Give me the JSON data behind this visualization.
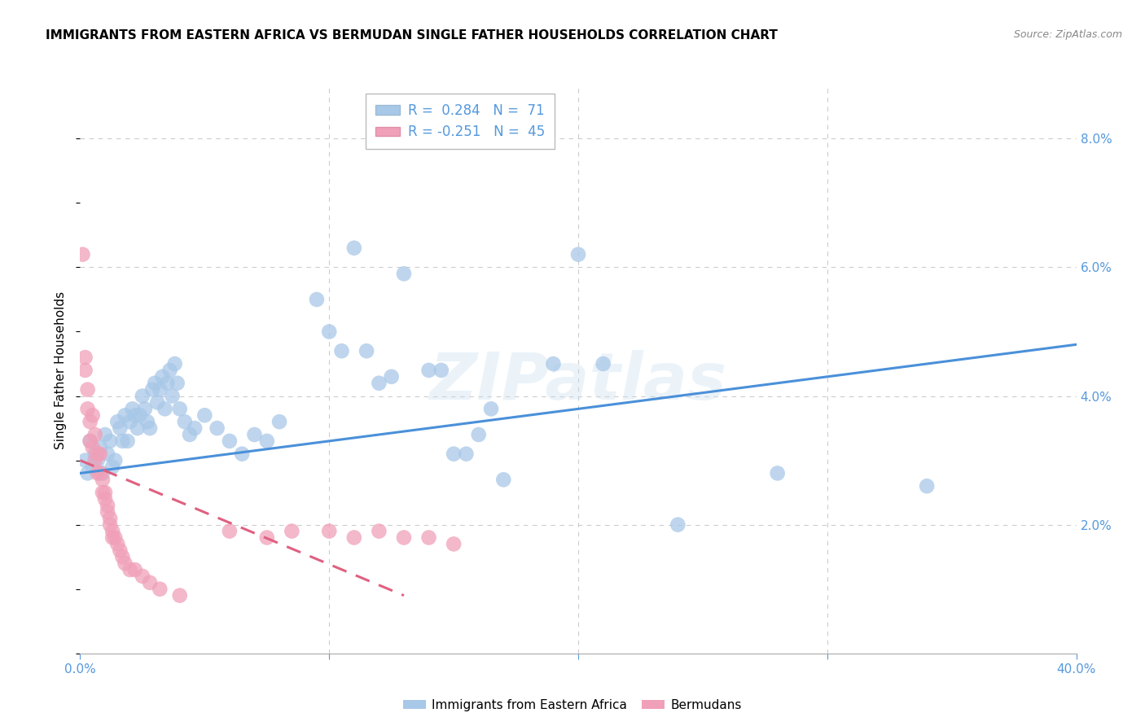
{
  "title": "IMMIGRANTS FROM EASTERN AFRICA VS BERMUDAN SINGLE FATHER HOUSEHOLDS CORRELATION CHART",
  "source": "Source: ZipAtlas.com",
  "ylabel": "Single Father Households",
  "watermark": "ZIPatlas",
  "xlim": [
    0.0,
    0.4
  ],
  "ylim": [
    0.0,
    0.088
  ],
  "yticks": [
    0.0,
    0.02,
    0.04,
    0.06,
    0.08
  ],
  "yticklabels": [
    "",
    "2.0%",
    "4.0%",
    "6.0%",
    "8.0%"
  ],
  "blue_color": "#a8c8e8",
  "pink_color": "#f0a0b8",
  "blue_line_color": "#4a90d9",
  "pink_line_color": "#e06080",
  "tick_color": "#5599dd",
  "grid_color": "#cccccc",
  "blue_scatter": [
    [
      0.002,
      0.03
    ],
    [
      0.003,
      0.028
    ],
    [
      0.004,
      0.033
    ],
    [
      0.005,
      0.029
    ],
    [
      0.006,
      0.031
    ],
    [
      0.007,
      0.03
    ],
    [
      0.008,
      0.032
    ],
    [
      0.009,
      0.028
    ],
    [
      0.01,
      0.034
    ],
    [
      0.011,
      0.031
    ],
    [
      0.012,
      0.033
    ],
    [
      0.013,
      0.029
    ],
    [
      0.014,
      0.03
    ],
    [
      0.015,
      0.036
    ],
    [
      0.016,
      0.035
    ],
    [
      0.017,
      0.033
    ],
    [
      0.018,
      0.037
    ],
    [
      0.019,
      0.033
    ],
    [
      0.02,
      0.036
    ],
    [
      0.021,
      0.038
    ],
    [
      0.022,
      0.037
    ],
    [
      0.023,
      0.035
    ],
    [
      0.024,
      0.037
    ],
    [
      0.025,
      0.04
    ],
    [
      0.026,
      0.038
    ],
    [
      0.027,
      0.036
    ],
    [
      0.028,
      0.035
    ],
    [
      0.029,
      0.041
    ],
    [
      0.03,
      0.042
    ],
    [
      0.031,
      0.039
    ],
    [
      0.032,
      0.041
    ],
    [
      0.033,
      0.043
    ],
    [
      0.034,
      0.038
    ],
    [
      0.035,
      0.042
    ],
    [
      0.036,
      0.044
    ],
    [
      0.037,
      0.04
    ],
    [
      0.038,
      0.045
    ],
    [
      0.039,
      0.042
    ],
    [
      0.04,
      0.038
    ],
    [
      0.042,
      0.036
    ],
    [
      0.044,
      0.034
    ],
    [
      0.046,
      0.035
    ],
    [
      0.05,
      0.037
    ],
    [
      0.055,
      0.035
    ],
    [
      0.06,
      0.033
    ],
    [
      0.065,
      0.031
    ],
    [
      0.07,
      0.034
    ],
    [
      0.075,
      0.033
    ],
    [
      0.08,
      0.036
    ],
    [
      0.095,
      0.055
    ],
    [
      0.1,
      0.05
    ],
    [
      0.105,
      0.047
    ],
    [
      0.11,
      0.063
    ],
    [
      0.115,
      0.047
    ],
    [
      0.12,
      0.042
    ],
    [
      0.125,
      0.043
    ],
    [
      0.13,
      0.059
    ],
    [
      0.14,
      0.044
    ],
    [
      0.145,
      0.044
    ],
    [
      0.15,
      0.031
    ],
    [
      0.155,
      0.031
    ],
    [
      0.16,
      0.034
    ],
    [
      0.165,
      0.038
    ],
    [
      0.17,
      0.027
    ],
    [
      0.19,
      0.045
    ],
    [
      0.2,
      0.062
    ],
    [
      0.21,
      0.045
    ],
    [
      0.24,
      0.02
    ],
    [
      0.28,
      0.028
    ],
    [
      0.34,
      0.026
    ]
  ],
  "pink_scatter": [
    [
      0.001,
      0.062
    ],
    [
      0.002,
      0.046
    ],
    [
      0.002,
      0.044
    ],
    [
      0.003,
      0.041
    ],
    [
      0.003,
      0.038
    ],
    [
      0.004,
      0.036
    ],
    [
      0.004,
      0.033
    ],
    [
      0.005,
      0.037
    ],
    [
      0.005,
      0.032
    ],
    [
      0.006,
      0.034
    ],
    [
      0.006,
      0.03
    ],
    [
      0.007,
      0.031
    ],
    [
      0.007,
      0.028
    ],
    [
      0.008,
      0.031
    ],
    [
      0.008,
      0.028
    ],
    [
      0.009,
      0.027
    ],
    [
      0.009,
      0.025
    ],
    [
      0.01,
      0.025
    ],
    [
      0.01,
      0.024
    ],
    [
      0.011,
      0.023
    ],
    [
      0.011,
      0.022
    ],
    [
      0.012,
      0.021
    ],
    [
      0.012,
      0.02
    ],
    [
      0.013,
      0.019
    ],
    [
      0.013,
      0.018
    ],
    [
      0.014,
      0.018
    ],
    [
      0.015,
      0.017
    ],
    [
      0.016,
      0.016
    ],
    [
      0.017,
      0.015
    ],
    [
      0.018,
      0.014
    ],
    [
      0.02,
      0.013
    ],
    [
      0.022,
      0.013
    ],
    [
      0.025,
      0.012
    ],
    [
      0.028,
      0.011
    ],
    [
      0.032,
      0.01
    ],
    [
      0.04,
      0.009
    ],
    [
      0.06,
      0.019
    ],
    [
      0.075,
      0.018
    ],
    [
      0.085,
      0.019
    ],
    [
      0.1,
      0.019
    ],
    [
      0.11,
      0.018
    ],
    [
      0.12,
      0.019
    ],
    [
      0.13,
      0.018
    ],
    [
      0.14,
      0.018
    ],
    [
      0.15,
      0.017
    ]
  ],
  "blue_line": [
    [
      0.0,
      0.028
    ],
    [
      0.4,
      0.048
    ]
  ],
  "pink_line": [
    [
      0.0,
      0.03
    ],
    [
      0.13,
      0.009
    ]
  ]
}
